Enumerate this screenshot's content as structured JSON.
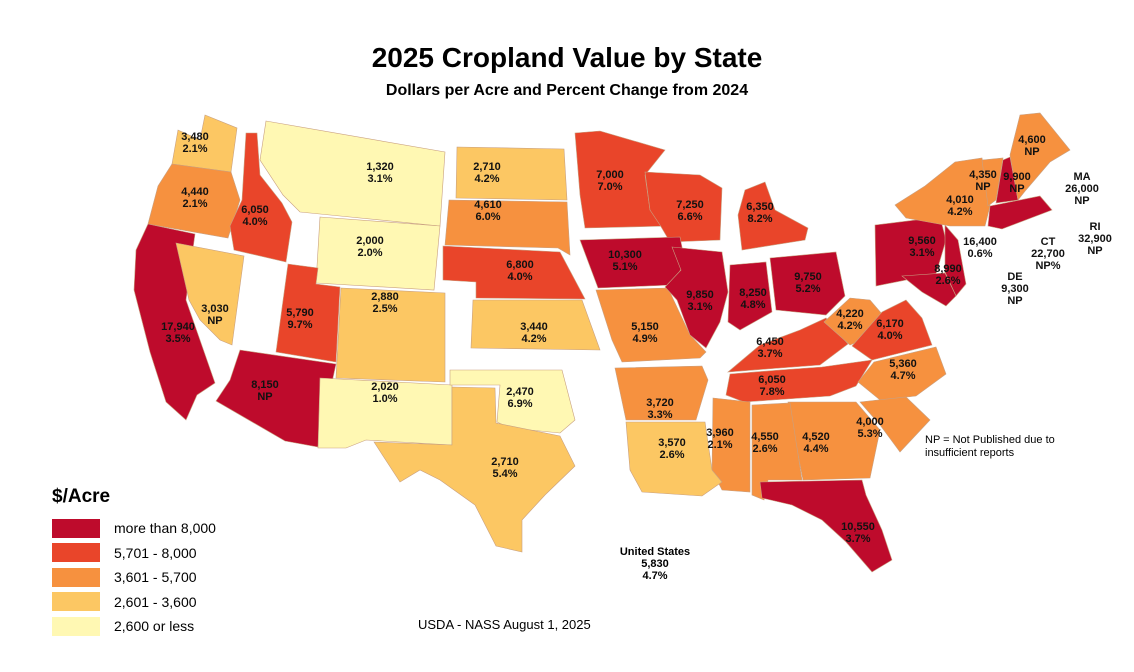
{
  "title": "2025 Cropland Value by State",
  "subtitle": "Dollars per Acre and Percent Change from 2024",
  "legend": {
    "title": "$/Acre",
    "classes": [
      {
        "label": "more than 8,000",
        "color": "#BE0B2C"
      },
      {
        "label": "5,701 - 8,000",
        "color": "#E9452A"
      },
      {
        "label": "3,601 - 5,700",
        "color": "#F6913F"
      },
      {
        "label": "2,601 - 3,600",
        "color": "#FCC763"
      },
      {
        "label": "2,600 or less",
        "color": "#FFF8B3"
      }
    ]
  },
  "note": "NP = Not Published due to insufficient reports",
  "united_states": {
    "name": "United States",
    "value": "5,830",
    "change": "4.7%"
  },
  "source": "USDA - NASS August 1, 2025",
  "states": [
    {
      "code": "WA",
      "value": "3,480",
      "change": "2.1%",
      "class": 3
    },
    {
      "code": "OR",
      "value": "4,440",
      "change": "2.1%",
      "class": 2
    },
    {
      "code": "CA",
      "value": "17,940",
      "change": "3.5%",
      "class": 0
    },
    {
      "code": "NV",
      "value": "3,030",
      "change": "NP",
      "class": 3
    },
    {
      "code": "ID",
      "value": "6,050",
      "change": "4.0%",
      "class": 1
    },
    {
      "code": "MT",
      "value": "1,320",
      "change": "3.1%",
      "class": 4
    },
    {
      "code": "WY",
      "value": "2,000",
      "change": "2.0%",
      "class": 4
    },
    {
      "code": "UT",
      "value": "5,790",
      "change": "9.7%",
      "class": 1
    },
    {
      "code": "CO",
      "value": "2,880",
      "change": "2.5%",
      "class": 3
    },
    {
      "code": "AZ",
      "value": "8,150",
      "change": "NP",
      "class": 0
    },
    {
      "code": "NM",
      "value": "2,020",
      "change": "1.0%",
      "class": 4
    },
    {
      "code": "ND",
      "value": "2,710",
      "change": "4.2%",
      "class": 3
    },
    {
      "code": "SD",
      "value": "4,610",
      "change": "6.0%",
      "class": 2
    },
    {
      "code": "NE",
      "value": "6,800",
      "change": "4.0%",
      "class": 1
    },
    {
      "code": "KS",
      "value": "3,440",
      "change": "4.2%",
      "class": 3
    },
    {
      "code": "OK",
      "value": "2,470",
      "change": "6.9%",
      "class": 4
    },
    {
      "code": "TX",
      "value": "2,710",
      "change": "5.4%",
      "class": 3
    },
    {
      "code": "MN",
      "value": "7,000",
      "change": "7.0%",
      "class": 1
    },
    {
      "code": "WI",
      "value": "7,250",
      "change": "6.6%",
      "class": 1
    },
    {
      "code": "MI",
      "value": "6,350",
      "change": "8.2%",
      "class": 1
    },
    {
      "code": "IA",
      "value": "10,300",
      "change": "5.1%",
      "class": 0
    },
    {
      "code": "MO",
      "value": "5,150",
      "change": "4.9%",
      "class": 2
    },
    {
      "code": "IL",
      "value": "9,850",
      "change": "3.1%",
      "class": 0
    },
    {
      "code": "IN",
      "value": "8,250",
      "change": "4.8%",
      "class": 0
    },
    {
      "code": "OH",
      "value": "9,750",
      "change": "5.2%",
      "class": 0
    },
    {
      "code": "KY",
      "value": "6,450",
      "change": "3.7%",
      "class": 1
    },
    {
      "code": "TN",
      "value": "6,050",
      "change": "7.8%",
      "class": 1
    },
    {
      "code": "WV",
      "value": "4,220",
      "change": "4.2%",
      "class": 2
    },
    {
      "code": "VA",
      "value": "6,170",
      "change": "4.0%",
      "class": 1
    },
    {
      "code": "NC",
      "value": "5,360",
      "change": "4.7%",
      "class": 2
    },
    {
      "code": "SC",
      "value": "4,000",
      "change": "5.3%",
      "class": 2
    },
    {
      "code": "GA",
      "value": "4,520",
      "change": "4.4%",
      "class": 2
    },
    {
      "code": "AL",
      "value": "4,550",
      "change": "2.6%",
      "class": 2
    },
    {
      "code": "MS",
      "value": "3,960",
      "change": "2.1%",
      "class": 2
    },
    {
      "code": "LA",
      "value": "3,570",
      "change": "2.6%",
      "class": 3
    },
    {
      "code": "AR",
      "value": "3,720",
      "change": "3.3%",
      "class": 2
    },
    {
      "code": "FL",
      "value": "10,550",
      "change": "3.7%",
      "class": 0
    },
    {
      "code": "PA",
      "value": "9,560",
      "change": "3.1%",
      "class": 0
    },
    {
      "code": "NJ",
      "value": "16,400",
      "change": "0.6%",
      "class": 0
    },
    {
      "code": "MD",
      "value": "8,990",
      "change": "2.6%",
      "class": 0
    },
    {
      "code": "NY",
      "value": "4,010",
      "change": "4.2%",
      "class": 2
    },
    {
      "code": "VT",
      "value": "4,350",
      "change": "NP",
      "class": 2
    },
    {
      "code": "NH",
      "value": "9,900",
      "change": "NP",
      "class": 0
    },
    {
      "code": "ME",
      "value": "4,600",
      "change": "NP",
      "class": 2
    },
    {
      "code": "SNE",
      "value": "",
      "change": "",
      "class": 0
    }
  ],
  "callouts": [
    {
      "code": "MA",
      "value": "26,000",
      "change": "NP"
    },
    {
      "code": "RI",
      "value": "32,900",
      "change": "NP"
    },
    {
      "code": "CT",
      "value": "22,700",
      "change": "NP%"
    },
    {
      "code": "DE",
      "value": "9,300",
      "change": "NP"
    }
  ]
}
